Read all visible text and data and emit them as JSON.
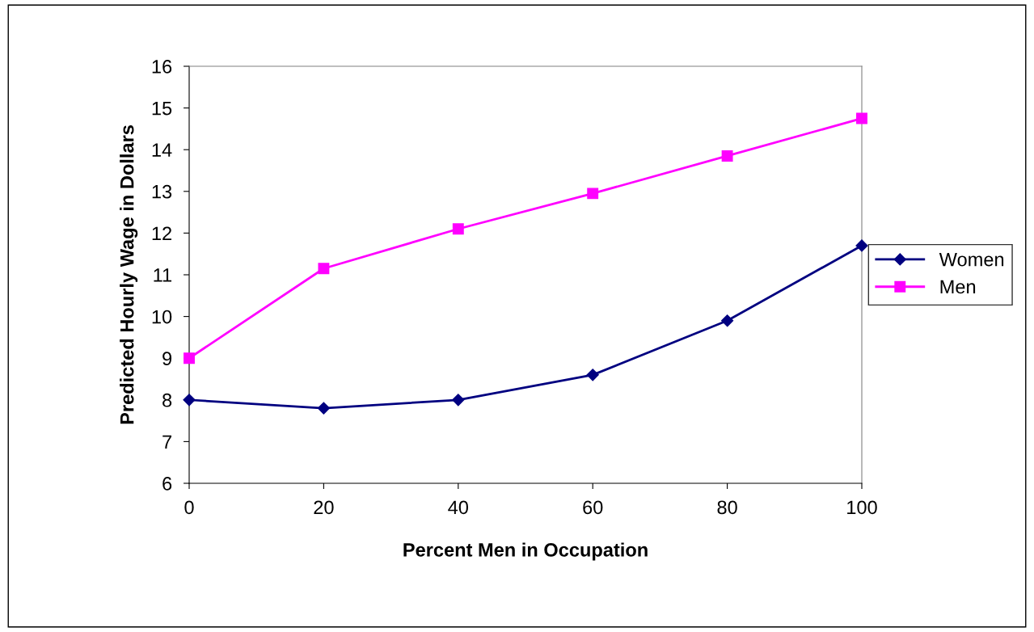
{
  "chart_data": {
    "type": "line",
    "xlabel": "Percent Men in Occupation",
    "ylabel": "Predicted Hourly Wage in Dollars",
    "x": [
      0,
      20,
      40,
      60,
      80,
      100
    ],
    "series": [
      {
        "name": "Women",
        "color": "#000080",
        "marker": "diamond",
        "values": [
          8.0,
          7.8,
          8.0,
          8.6,
          9.9,
          11.7
        ]
      },
      {
        "name": "Men",
        "color": "#ff00ff",
        "marker": "square",
        "values": [
          9.0,
          11.15,
          12.1,
          12.95,
          13.85,
          14.75
        ]
      }
    ],
    "xlim": [
      0,
      100
    ],
    "xticks": [
      0,
      20,
      40,
      60,
      80,
      100
    ],
    "ylim": [
      6,
      16
    ],
    "yticks": [
      6,
      7,
      8,
      9,
      10,
      11,
      12,
      13,
      14,
      15,
      16
    ],
    "grid": false,
    "legend": "right",
    "line_style": "solid"
  }
}
